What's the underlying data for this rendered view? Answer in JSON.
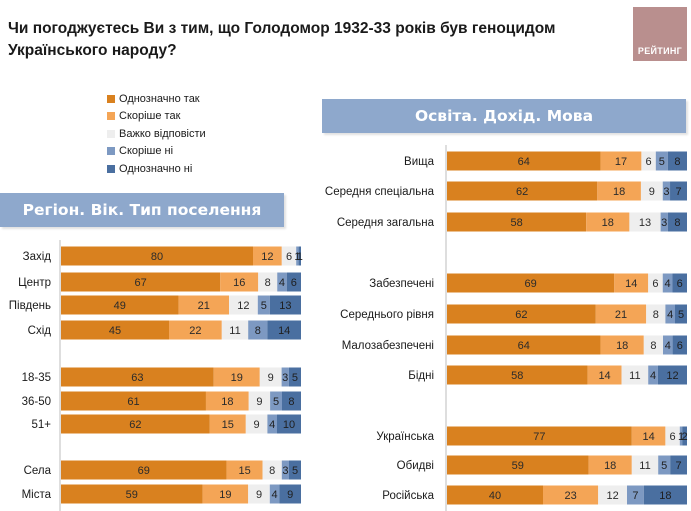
{
  "title": "Чи погоджуєтесь Ви з тим, що Голодомор 1932-33 років був геноцидом Українського народу?",
  "logo_text": "РЕЙТИНГ",
  "legend": [
    {
      "label": "Однозначно так",
      "color": "#d9811f"
    },
    {
      "label": "Скоріше так",
      "color": "#f4a556"
    },
    {
      "label": "Важко відповісти",
      "color": "#eeeeee"
    },
    {
      "label": "Скоріше ні",
      "color": "#7d99c2"
    },
    {
      "label": "Однозначно ні",
      "color": "#4a6fa0"
    }
  ],
  "banner_left": "Регіон. Вік. Тип поселення",
  "banner_right": "Освіта. Дохід. Мова",
  "chart_data": [
    {
      "type": "bar",
      "orientation": "horizontal",
      "stacked": true,
      "panel": "left",
      "title": "Регіон. Вік. Тип поселення",
      "categories": [
        "Захід",
        "Центр",
        "Південь",
        "Схід",
        "18-35",
        "36-50",
        "51+",
        "Села",
        "Міста"
      ],
      "series": [
        {
          "name": "Однозначно так",
          "values": [
            80,
            67,
            49,
            45,
            63,
            61,
            62,
            69,
            59
          ]
        },
        {
          "name": "Скоріше так",
          "values": [
            12,
            16,
            21,
            22,
            19,
            18,
            15,
            15,
            19
          ]
        },
        {
          "name": "Важко відповісти",
          "values": [
            6,
            8,
            12,
            11,
            9,
            9,
            9,
            8,
            9
          ]
        },
        {
          "name": "Скоріше ні",
          "values": [
            1,
            4,
            5,
            8,
            3,
            5,
            4,
            3,
            4
          ]
        },
        {
          "name": "Однозначно ні",
          "values": [
            1,
            6,
            13,
            14,
            5,
            8,
            10,
            5,
            9
          ]
        }
      ],
      "labels": [
        [
          "80",
          "12",
          "6",
          "1",
          "1"
        ],
        [
          "67",
          "16",
          "8",
          "4",
          "6"
        ],
        [
          "49",
          "21",
          "12",
          "5",
          "13"
        ],
        [
          "45",
          "22",
          "11",
          "8",
          "14"
        ],
        [
          "63",
          "19",
          "9",
          "3",
          "5"
        ],
        [
          "61",
          "18",
          "9",
          "5",
          "8"
        ],
        [
          "62",
          "15",
          "9",
          "4",
          "10"
        ],
        [
          "69",
          "15",
          "8",
          "3",
          "5"
        ],
        [
          "59",
          "19",
          "9",
          "4",
          "9"
        ]
      ],
      "groups": [
        [
          "Захід",
          "Центр",
          "Південь",
          "Схід"
        ],
        [
          "18-35",
          "36-50",
          "51+"
        ],
        [
          "Села",
          "Міста"
        ]
      ]
    },
    {
      "type": "bar",
      "orientation": "horizontal",
      "stacked": true,
      "panel": "right",
      "title": "Освіта. Дохід. Мова",
      "categories": [
        "Вища",
        "Середня спеціальна",
        "Середня загальна",
        "Забезпечені",
        "Середнього рівня",
        "Малозабезпечені",
        "Бідні",
        "Українська",
        "Обидві",
        "Російська"
      ],
      "series": [
        {
          "name": "Однозначно так",
          "values": [
            64,
            62,
            58,
            69,
            62,
            64,
            58,
            77,
            59,
            40
          ]
        },
        {
          "name": "Скоріше так",
          "values": [
            17,
            18,
            18,
            14,
            21,
            18,
            14,
            14,
            18,
            23
          ]
        },
        {
          "name": "Важко відповісти",
          "values": [
            6,
            9,
            13,
            6,
            8,
            8,
            11,
            6,
            11,
            12
          ]
        },
        {
          "name": "Скоріше ні",
          "values": [
            5,
            3,
            3,
            4,
            4,
            4,
            4,
            1,
            5,
            7
          ]
        },
        {
          "name": "Однозначно ні",
          "values": [
            8,
            7,
            8,
            6,
            5,
            6,
            12,
            2,
            7,
            18
          ]
        }
      ],
      "labels": [
        [
          "64",
          "17",
          "6",
          "5",
          "8"
        ],
        [
          "62",
          "18",
          "9",
          "3",
          "7"
        ],
        [
          "58",
          "18",
          "13",
          "3",
          "8"
        ],
        [
          "69",
          "14",
          "6",
          "4",
          "6"
        ],
        [
          "62",
          "21",
          "8",
          "4",
          "5"
        ],
        [
          "64",
          "18",
          "8",
          "4",
          "6"
        ],
        [
          "58",
          "14",
          "11",
          "4",
          "12"
        ],
        [
          "77",
          "14",
          "6",
          "1",
          "2"
        ],
        [
          "59",
          "18",
          "11",
          "5",
          "7"
        ],
        [
          "40",
          "23",
          "12",
          "7",
          "18"
        ]
      ],
      "groups": [
        [
          "Вища",
          "Середня спеціальна",
          "Середня загальна"
        ],
        [
          "Забезпечені",
          "Середнього рівня",
          "Малозабезпечені",
          "Бідні"
        ],
        [
          "Українська",
          "Обидві",
          "Російська"
        ]
      ]
    }
  ]
}
